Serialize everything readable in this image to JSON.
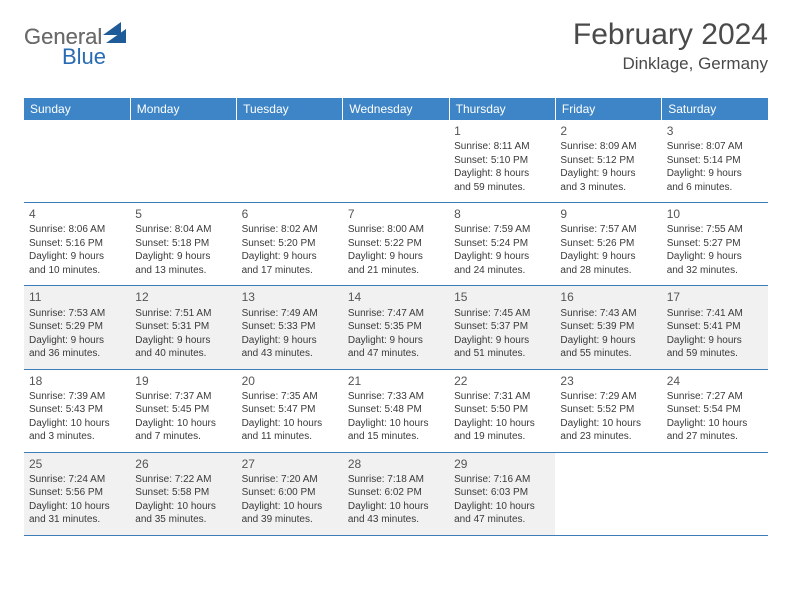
{
  "logo": {
    "general": "General",
    "blue": "Blue",
    "shape_color": "#1f5a99"
  },
  "title": "February 2024",
  "location": "Dinklage, Germany",
  "colors": {
    "header_bg": "#3d85c6",
    "header_text": "#ffffff",
    "border": "#3d7cb8",
    "alt_row_bg": "#f1f1f1",
    "text": "#3a3a3a"
  },
  "day_headers": [
    "Sunday",
    "Monday",
    "Tuesday",
    "Wednesday",
    "Thursday",
    "Friday",
    "Saturday"
  ],
  "weeks": [
    {
      "alt": false,
      "days": [
        null,
        null,
        null,
        null,
        {
          "n": "1",
          "sunrise": "Sunrise: 8:11 AM",
          "sunset": "Sunset: 5:10 PM",
          "day1": "Daylight: 8 hours",
          "day2": "and 59 minutes."
        },
        {
          "n": "2",
          "sunrise": "Sunrise: 8:09 AM",
          "sunset": "Sunset: 5:12 PM",
          "day1": "Daylight: 9 hours",
          "day2": "and 3 minutes."
        },
        {
          "n": "3",
          "sunrise": "Sunrise: 8:07 AM",
          "sunset": "Sunset: 5:14 PM",
          "day1": "Daylight: 9 hours",
          "day2": "and 6 minutes."
        }
      ]
    },
    {
      "alt": false,
      "days": [
        {
          "n": "4",
          "sunrise": "Sunrise: 8:06 AM",
          "sunset": "Sunset: 5:16 PM",
          "day1": "Daylight: 9 hours",
          "day2": "and 10 minutes."
        },
        {
          "n": "5",
          "sunrise": "Sunrise: 8:04 AM",
          "sunset": "Sunset: 5:18 PM",
          "day1": "Daylight: 9 hours",
          "day2": "and 13 minutes."
        },
        {
          "n": "6",
          "sunrise": "Sunrise: 8:02 AM",
          "sunset": "Sunset: 5:20 PM",
          "day1": "Daylight: 9 hours",
          "day2": "and 17 minutes."
        },
        {
          "n": "7",
          "sunrise": "Sunrise: 8:00 AM",
          "sunset": "Sunset: 5:22 PM",
          "day1": "Daylight: 9 hours",
          "day2": "and 21 minutes."
        },
        {
          "n": "8",
          "sunrise": "Sunrise: 7:59 AM",
          "sunset": "Sunset: 5:24 PM",
          "day1": "Daylight: 9 hours",
          "day2": "and 24 minutes."
        },
        {
          "n": "9",
          "sunrise": "Sunrise: 7:57 AM",
          "sunset": "Sunset: 5:26 PM",
          "day1": "Daylight: 9 hours",
          "day2": "and 28 minutes."
        },
        {
          "n": "10",
          "sunrise": "Sunrise: 7:55 AM",
          "sunset": "Sunset: 5:27 PM",
          "day1": "Daylight: 9 hours",
          "day2": "and 32 minutes."
        }
      ]
    },
    {
      "alt": true,
      "days": [
        {
          "n": "11",
          "sunrise": "Sunrise: 7:53 AM",
          "sunset": "Sunset: 5:29 PM",
          "day1": "Daylight: 9 hours",
          "day2": "and 36 minutes."
        },
        {
          "n": "12",
          "sunrise": "Sunrise: 7:51 AM",
          "sunset": "Sunset: 5:31 PM",
          "day1": "Daylight: 9 hours",
          "day2": "and 40 minutes."
        },
        {
          "n": "13",
          "sunrise": "Sunrise: 7:49 AM",
          "sunset": "Sunset: 5:33 PM",
          "day1": "Daylight: 9 hours",
          "day2": "and 43 minutes."
        },
        {
          "n": "14",
          "sunrise": "Sunrise: 7:47 AM",
          "sunset": "Sunset: 5:35 PM",
          "day1": "Daylight: 9 hours",
          "day2": "and 47 minutes."
        },
        {
          "n": "15",
          "sunrise": "Sunrise: 7:45 AM",
          "sunset": "Sunset: 5:37 PM",
          "day1": "Daylight: 9 hours",
          "day2": "and 51 minutes."
        },
        {
          "n": "16",
          "sunrise": "Sunrise: 7:43 AM",
          "sunset": "Sunset: 5:39 PM",
          "day1": "Daylight: 9 hours",
          "day2": "and 55 minutes."
        },
        {
          "n": "17",
          "sunrise": "Sunrise: 7:41 AM",
          "sunset": "Sunset: 5:41 PM",
          "day1": "Daylight: 9 hours",
          "day2": "and 59 minutes."
        }
      ]
    },
    {
      "alt": false,
      "days": [
        {
          "n": "18",
          "sunrise": "Sunrise: 7:39 AM",
          "sunset": "Sunset: 5:43 PM",
          "day1": "Daylight: 10 hours",
          "day2": "and 3 minutes."
        },
        {
          "n": "19",
          "sunrise": "Sunrise: 7:37 AM",
          "sunset": "Sunset: 5:45 PM",
          "day1": "Daylight: 10 hours",
          "day2": "and 7 minutes."
        },
        {
          "n": "20",
          "sunrise": "Sunrise: 7:35 AM",
          "sunset": "Sunset: 5:47 PM",
          "day1": "Daylight: 10 hours",
          "day2": "and 11 minutes."
        },
        {
          "n": "21",
          "sunrise": "Sunrise: 7:33 AM",
          "sunset": "Sunset: 5:48 PM",
          "day1": "Daylight: 10 hours",
          "day2": "and 15 minutes."
        },
        {
          "n": "22",
          "sunrise": "Sunrise: 7:31 AM",
          "sunset": "Sunset: 5:50 PM",
          "day1": "Daylight: 10 hours",
          "day2": "and 19 minutes."
        },
        {
          "n": "23",
          "sunrise": "Sunrise: 7:29 AM",
          "sunset": "Sunset: 5:52 PM",
          "day1": "Daylight: 10 hours",
          "day2": "and 23 minutes."
        },
        {
          "n": "24",
          "sunrise": "Sunrise: 7:27 AM",
          "sunset": "Sunset: 5:54 PM",
          "day1": "Daylight: 10 hours",
          "day2": "and 27 minutes."
        }
      ]
    },
    {
      "alt": true,
      "days": [
        {
          "n": "25",
          "sunrise": "Sunrise: 7:24 AM",
          "sunset": "Sunset: 5:56 PM",
          "day1": "Daylight: 10 hours",
          "day2": "and 31 minutes."
        },
        {
          "n": "26",
          "sunrise": "Sunrise: 7:22 AM",
          "sunset": "Sunset: 5:58 PM",
          "day1": "Daylight: 10 hours",
          "day2": "and 35 minutes."
        },
        {
          "n": "27",
          "sunrise": "Sunrise: 7:20 AM",
          "sunset": "Sunset: 6:00 PM",
          "day1": "Daylight: 10 hours",
          "day2": "and 39 minutes."
        },
        {
          "n": "28",
          "sunrise": "Sunrise: 7:18 AM",
          "sunset": "Sunset: 6:02 PM",
          "day1": "Daylight: 10 hours",
          "day2": "and 43 minutes."
        },
        {
          "n": "29",
          "sunrise": "Sunrise: 7:16 AM",
          "sunset": "Sunset: 6:03 PM",
          "day1": "Daylight: 10 hours",
          "day2": "and 47 minutes."
        },
        null,
        null
      ]
    }
  ]
}
